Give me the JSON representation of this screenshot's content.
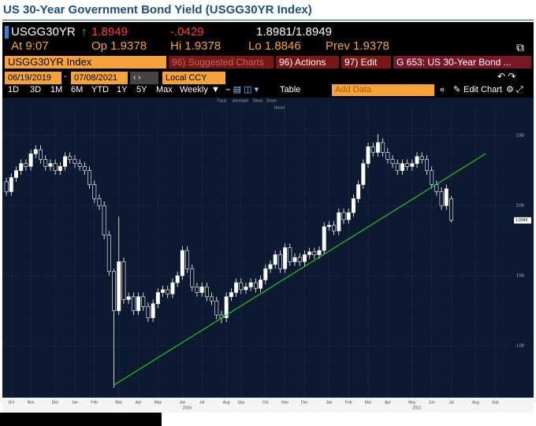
{
  "title": "US 30-Year Government Bond Yield (USGG30YR Index)",
  "header": {
    "security": "USGG30YR",
    "last": "1.8949",
    "change": "-.0429",
    "bid_ask": "1.8981/1.8949",
    "time": "At 9:07",
    "open": "Op 1.9378",
    "high": "Hi 1.9378",
    "low": "Lo 1.8846",
    "prev": "Prev 1.9378"
  },
  "toolbar": {
    "security": "USGG30YR Index",
    "menus": [
      "96) Suggested Charts",
      "96) Actions",
      "97) Edit",
      "G 653: US 30-Year Bond ..."
    ],
    "start_date": "06/19/2019",
    "date_sep": "-",
    "end_date": "07/08/2021",
    "currency": "Local CCY",
    "ranges": [
      "1D",
      "3D",
      "1M",
      "6M",
      "YTD",
      "1Y",
      "5Y",
      "Max"
    ],
    "period": "Weekly",
    "view": "Table",
    "add_data": "Add Data",
    "edit_chart": "Edit Chart",
    "tools": [
      "Track",
      "Annotate",
      "News",
      "Zoom"
    ],
    "reset": "Reset"
  },
  "chart_data": {
    "type": "candlestick",
    "categories": [
      null,
      "Oct",
      null,
      null,
      null,
      "Nov",
      null,
      null,
      null,
      null,
      "Dec",
      null,
      null,
      null,
      "Jan",
      null,
      null,
      null,
      "Feb",
      null,
      null,
      null,
      null,
      "Mar",
      null,
      null,
      null,
      "Apr",
      null,
      null,
      null,
      "May",
      null,
      null,
      null,
      null,
      "Jun",
      null,
      null,
      null,
      "Jul",
      null,
      null,
      null,
      null,
      "Aug",
      null,
      null,
      "Sep",
      null,
      null,
      null,
      null,
      "Oct",
      null,
      null,
      null,
      "Nov",
      null,
      null,
      null,
      "Dec",
      null,
      null,
      null,
      null,
      "Jan",
      null,
      null,
      null,
      "Feb",
      null,
      null,
      null,
      "Mar",
      null,
      null,
      null,
      "Apr",
      null,
      null,
      null,
      null,
      "May",
      null,
      null,
      null,
      "Jun",
      null,
      null,
      null,
      "Jul",
      null,
      null,
      null,
      null,
      "Aug",
      null,
      null,
      null,
      "Sep",
      null,
      null,
      null
    ],
    "year_labels": [
      null,
      null,
      null,
      null,
      null,
      null,
      null,
      null,
      null,
      null,
      null,
      null,
      null,
      null,
      null,
      null,
      null,
      null,
      null,
      null,
      null,
      null,
      null,
      null,
      null,
      null,
      null,
      null,
      null,
      null,
      null,
      null,
      null,
      null,
      null,
      null,
      null,
      "2020",
      null,
      null,
      null,
      null,
      null,
      null,
      null,
      null,
      null,
      null,
      null,
      null,
      null,
      null,
      null,
      null,
      null,
      null,
      null,
      null,
      null,
      null,
      null,
      null,
      null,
      null,
      null,
      null,
      null,
      null,
      null,
      null,
      null,
      null,
      null,
      null,
      null,
      null,
      null,
      null,
      null,
      null,
      null,
      null,
      null,
      null,
      "2021",
      null,
      null,
      null,
      null,
      null,
      null,
      null,
      null,
      null,
      null,
      null,
      null,
      null,
      null,
      null,
      null,
      null,
      null,
      null
    ],
    "open": [
      2.17,
      2.1,
      2.2,
      2.25,
      2.3,
      2.28,
      2.37,
      2.4,
      2.33,
      2.28,
      2.3,
      2.25,
      2.28,
      2.35,
      2.33,
      2.3,
      2.28,
      2.25,
      2.15,
      2.05,
      2.0,
      1.79,
      1.53,
      1.25,
      1.6,
      1.33,
      1.35,
      1.25,
      1.35,
      1.28,
      1.2,
      1.3,
      1.38,
      1.4,
      1.37,
      1.45,
      1.5,
      1.68,
      1.55,
      1.42,
      1.38,
      1.42,
      1.35,
      1.32,
      1.22,
      1.2,
      1.35,
      1.38,
      1.45,
      1.4,
      1.42,
      1.45,
      1.41,
      1.47,
      1.55,
      1.58,
      1.65,
      1.55,
      1.7,
      1.6,
      1.63,
      1.6,
      1.65,
      1.67,
      1.65,
      1.68,
      1.85,
      1.86,
      1.82,
      1.95,
      1.9,
      1.95,
      2.05,
      2.15,
      2.3,
      2.42,
      2.38,
      2.45,
      2.38,
      2.33,
      2.3,
      2.25,
      2.3,
      2.28,
      2.3,
      2.35,
      2.33,
      2.25,
      2.15,
      2.1,
      2.0,
      2.05,
      null,
      null,
      null,
      null,
      null,
      null,
      null,
      null,
      null,
      null,
      null,
      null
    ],
    "high": [
      2.2,
      2.23,
      2.28,
      2.33,
      2.33,
      2.4,
      2.43,
      2.43,
      2.36,
      2.33,
      2.33,
      2.31,
      2.38,
      2.38,
      2.36,
      2.33,
      2.31,
      2.28,
      2.18,
      2.08,
      2.03,
      1.82,
      1.55,
      1.92,
      1.63,
      1.38,
      1.38,
      1.38,
      1.38,
      1.31,
      1.33,
      1.41,
      1.43,
      1.43,
      1.48,
      1.53,
      1.71,
      1.71,
      1.58,
      1.45,
      1.45,
      1.45,
      1.38,
      1.35,
      1.25,
      1.38,
      1.41,
      1.48,
      1.48,
      1.45,
      1.48,
      1.48,
      1.5,
      1.58,
      1.61,
      1.68,
      1.68,
      1.73,
      1.73,
      1.66,
      1.66,
      1.68,
      1.7,
      1.7,
      1.71,
      1.88,
      1.89,
      1.89,
      1.98,
      1.98,
      1.98,
      2.08,
      2.18,
      2.33,
      2.45,
      2.45,
      2.51,
      2.48,
      2.41,
      2.36,
      2.33,
      2.33,
      2.33,
      2.33,
      2.38,
      2.38,
      2.36,
      2.28,
      2.18,
      2.13,
      2.15,
      2.07,
      null,
      null,
      null,
      null,
      null,
      null,
      null,
      null,
      null,
      null,
      null,
      null
    ],
    "low": [
      2.07,
      2.07,
      2.17,
      2.22,
      2.25,
      2.25,
      2.34,
      2.3,
      2.25,
      2.25,
      2.22,
      2.22,
      2.25,
      2.3,
      2.27,
      2.25,
      2.22,
      2.12,
      2.02,
      1.97,
      1.76,
      1.5,
      0.7,
      1.22,
      1.3,
      1.3,
      1.22,
      1.22,
      1.25,
      1.17,
      1.17,
      1.27,
      1.35,
      1.34,
      1.34,
      1.42,
      1.47,
      1.52,
      1.39,
      1.35,
      1.35,
      1.32,
      1.29,
      1.19,
      1.16,
      1.17,
      1.32,
      1.35,
      1.37,
      1.37,
      1.39,
      1.38,
      1.38,
      1.44,
      1.52,
      1.55,
      1.52,
      1.52,
      1.57,
      1.57,
      1.57,
      1.57,
      1.62,
      1.62,
      1.62,
      1.65,
      1.82,
      1.79,
      1.79,
      1.87,
      1.87,
      1.92,
      2.02,
      2.12,
      2.27,
      2.35,
      2.35,
      2.35,
      2.3,
      2.27,
      2.22,
      2.22,
      2.25,
      2.25,
      2.27,
      2.3,
      2.22,
      2.12,
      2.07,
      1.97,
      1.97,
      1.88,
      null,
      null,
      null,
      null,
      null,
      null,
      null,
      null,
      null,
      null,
      null,
      null
    ],
    "close": [
      2.1,
      2.2,
      2.25,
      2.3,
      2.28,
      2.37,
      2.4,
      2.33,
      2.28,
      2.3,
      2.25,
      2.28,
      2.35,
      2.33,
      2.3,
      2.28,
      2.25,
      2.15,
      2.05,
      2.0,
      1.79,
      1.53,
      1.25,
      1.6,
      1.33,
      1.35,
      1.25,
      1.35,
      1.28,
      1.2,
      1.3,
      1.38,
      1.4,
      1.37,
      1.45,
      1.5,
      1.68,
      1.55,
      1.42,
      1.38,
      1.42,
      1.35,
      1.32,
      1.22,
      1.2,
      1.35,
      1.38,
      1.45,
      1.4,
      1.42,
      1.45,
      1.41,
      1.47,
      1.55,
      1.58,
      1.65,
      1.55,
      1.7,
      1.6,
      1.63,
      1.6,
      1.65,
      1.67,
      1.65,
      1.68,
      1.85,
      1.86,
      1.82,
      1.95,
      1.9,
      1.95,
      2.05,
      2.15,
      2.3,
      2.42,
      2.38,
      2.45,
      2.38,
      2.33,
      2.3,
      2.25,
      2.3,
      2.28,
      2.3,
      2.35,
      2.33,
      2.25,
      2.15,
      2.1,
      2.0,
      2.12,
      1.8949,
      null,
      null,
      null,
      null,
      null,
      null,
      null,
      null,
      null,
      null,
      null,
      null
    ],
    "up_color": "#ffffff",
    "down_color": "#0b1a30",
    "wick_color": "#ffffff",
    "trendline": {
      "x": [
        22,
        98
      ],
      "y": [
        0.72,
        2.37
      ],
      "color": "#22c822"
    },
    "ylim": [
      0.63,
      2.72
    ],
    "yticks": [
      {
        "value": 1,
        "label": "1.00"
      },
      {
        "value": 1.5,
        "label": "1.50"
      },
      {
        "value": 2,
        "label": "2.00"
      },
      {
        "value": 2.5,
        "label": "2.50"
      }
    ],
    "grid": true
  }
}
